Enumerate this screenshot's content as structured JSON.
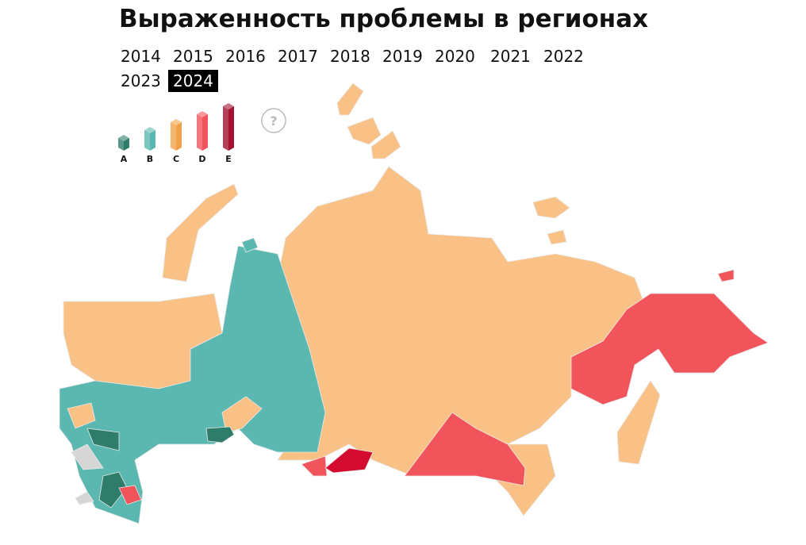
{
  "header": {
    "title": "Выраженность проблемы в регионах"
  },
  "years": [
    {
      "label": "2014",
      "active": false
    },
    {
      "label": "2015",
      "active": false
    },
    {
      "label": "2016",
      "active": false
    },
    {
      "label": "2017",
      "active": false
    },
    {
      "label": "2018",
      "active": false
    },
    {
      "label": "2019",
      "active": false
    },
    {
      "label": "2020",
      "active": false
    },
    {
      "label": "2021",
      "active": false
    },
    {
      "label": "2022",
      "active": false
    },
    {
      "label": "2023",
      "active": false
    },
    {
      "label": "2024",
      "active": true
    }
  ],
  "legend": [
    {
      "label": "A",
      "color": "#2e7d6b"
    },
    {
      "label": "B",
      "color": "#5bb8b0"
    },
    {
      "label": "C",
      "color": "#f4a24a"
    },
    {
      "label": "D",
      "color": "#f2545b"
    },
    {
      "label": "E",
      "color": "#a3122e"
    }
  ],
  "help": "?"
}
